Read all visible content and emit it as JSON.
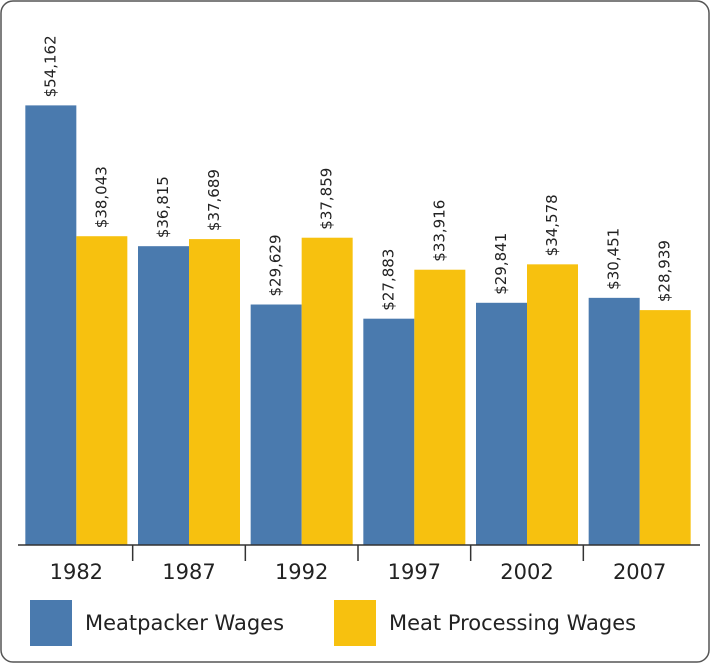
{
  "chart_data": {
    "type": "bar",
    "categories": [
      "1982",
      "1987",
      "1992",
      "1997",
      "2002",
      "2007"
    ],
    "series": [
      {
        "name": "Meatpacker Wages",
        "color": "#4a7aae",
        "values": [
          54162,
          36815,
          29629,
          27883,
          29841,
          30451
        ],
        "value_labels": [
          "$54,162",
          "$36,815",
          "$29,629",
          "$27,883",
          "$29,841",
          "$30,451"
        ]
      },
      {
        "name": "Meat Processing Wages",
        "color": "#f7c10f",
        "values": [
          38043,
          37689,
          37859,
          33916,
          34578,
          28939
        ],
        "value_labels": [
          "$38,043",
          "$37,689",
          "$37,859",
          "$33,916",
          "$34,578",
          "$28,939"
        ]
      }
    ],
    "ylim": [
      0,
      60000
    ]
  }
}
